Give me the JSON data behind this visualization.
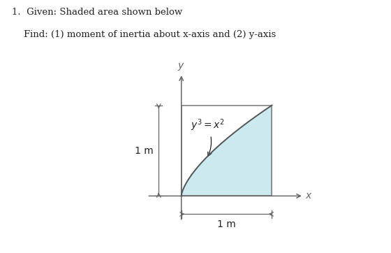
{
  "title_line1": "1.  Given: Shaded area shown below",
  "title_line2": "    Find: (1) moment of inertia about x-axis and (2) y-axis",
  "background_color": "#ffffff",
  "shaded_color": "#cce9f0",
  "shaded_alpha": 1.0,
  "curve_color": "#555555",
  "axis_color": "#666666",
  "border_color": "#777777",
  "label_1m_left": "1 m",
  "label_1m_bottom": "1 m",
  "equation_label": "$y^3 = x^2$",
  "x_axis_label": "$x$",
  "y_axis_label": "$y$",
  "text_color": "#222222",
  "fig_width": 5.6,
  "fig_height": 3.62,
  "dpi": 100
}
